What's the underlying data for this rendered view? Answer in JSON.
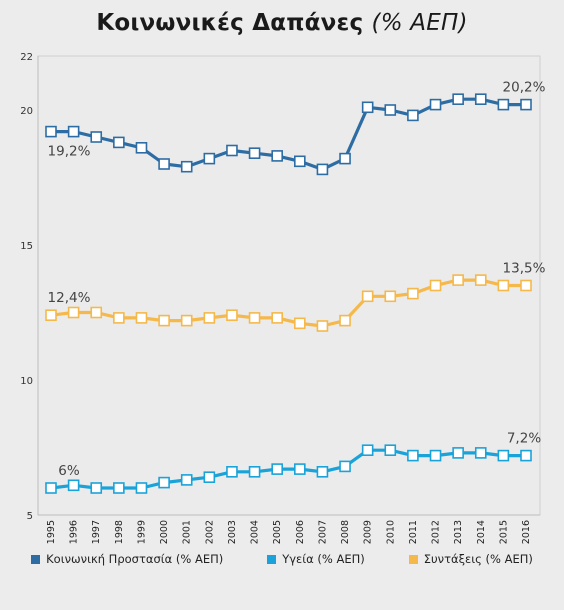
{
  "title": {
    "main": "Κοινωνικές Δαπάνες",
    "unit": "(% ΑΕΠ)"
  },
  "chart_data": {
    "type": "line",
    "title": "Κοινωνικές Δαπάνες (% ΑΕΠ)",
    "x": [
      "1995",
      "1996",
      "1997",
      "1998",
      "1999",
      "2000",
      "2001",
      "2002",
      "2003",
      "2004",
      "2005",
      "2006",
      "2007",
      "2008",
      "2009",
      "2010",
      "2011",
      "2012",
      "2013",
      "2014",
      "2015",
      "2016"
    ],
    "ylim": [
      5,
      22
    ],
    "yticks": [
      5,
      10,
      15,
      20,
      22
    ],
    "grid": false,
    "legend_position": "bottom",
    "series": [
      {
        "name": "Κοινωνική Προστασία (% ΑΕΠ)",
        "color": "#2e6da4",
        "values": [
          19.2,
          19.2,
          19.0,
          18.8,
          18.6,
          18.0,
          17.9,
          18.2,
          18.5,
          18.4,
          18.3,
          18.1,
          17.8,
          18.2,
          20.1,
          20.0,
          19.8,
          20.2,
          20.4,
          20.4,
          20.2,
          20.2
        ],
        "labels": [
          {
            "index": 0,
            "text": "19,2%"
          },
          {
            "index": 21,
            "text": "20,2%"
          }
        ]
      },
      {
        "name": "Υγεία (% ΑΕΠ)",
        "color": "#1aa3d9",
        "values": [
          6.0,
          6.1,
          6.0,
          6.0,
          6.0,
          6.2,
          6.3,
          6.4,
          6.6,
          6.6,
          6.7,
          6.7,
          6.6,
          6.8,
          7.4,
          7.4,
          7.2,
          7.2,
          7.3,
          7.3,
          7.2,
          7.2
        ],
        "labels": [
          {
            "index": 0,
            "text": "6%"
          },
          {
            "index": 21,
            "text": "7,2%"
          }
        ]
      },
      {
        "name": "Συντάξεις (% ΑΕΠ)",
        "color": "#f5b84a",
        "values": [
          12.4,
          12.5,
          12.5,
          12.3,
          12.3,
          12.2,
          12.2,
          12.3,
          12.4,
          12.3,
          12.3,
          12.1,
          12.0,
          12.2,
          13.1,
          13.1,
          13.2,
          13.5,
          13.7,
          13.7,
          13.5,
          13.5
        ],
        "labels": [
          {
            "index": 0,
            "text": "12,4%"
          },
          {
            "index": 21,
            "text": "13,5%"
          }
        ]
      }
    ]
  }
}
